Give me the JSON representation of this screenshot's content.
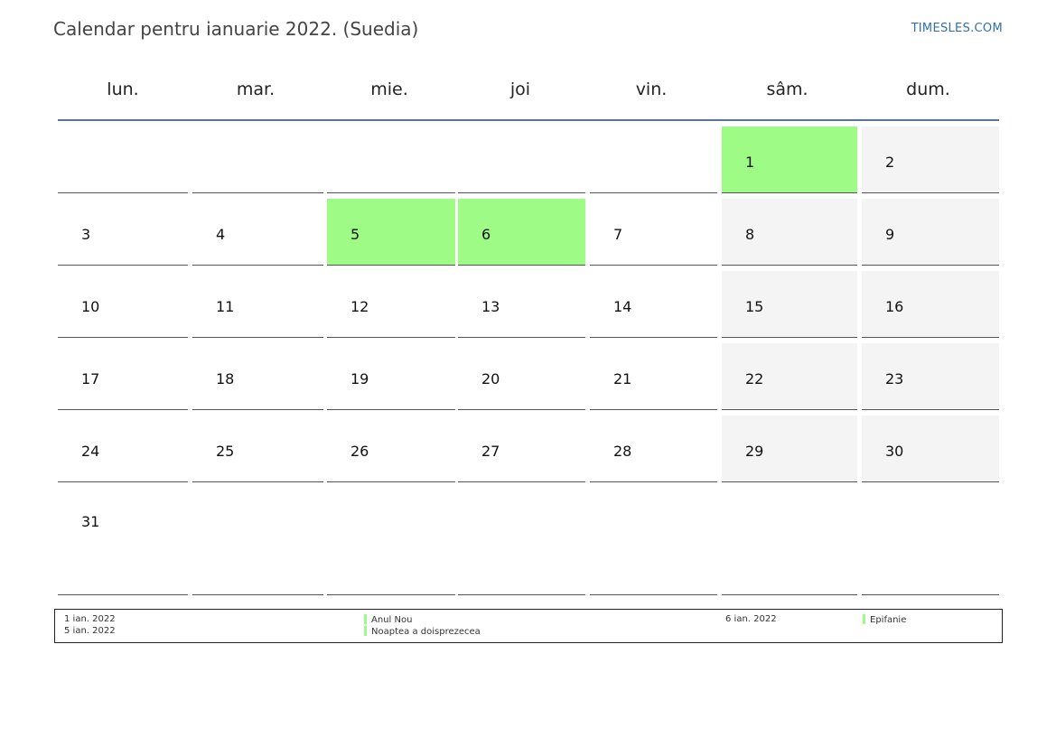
{
  "header": {
    "title": "Calendar pentru ianuarie 2022. (Suedia)",
    "site": "TIMESLES.COM"
  },
  "weekdays": [
    "lun.",
    "mar.",
    "mie.",
    "joi",
    "vin.",
    "sâm.",
    "dum."
  ],
  "weeks": [
    [
      "",
      "",
      "",
      "",
      "",
      "1",
      "2"
    ],
    [
      "3",
      "4",
      "5",
      "6",
      "7",
      "8",
      "9"
    ],
    [
      "10",
      "11",
      "12",
      "13",
      "14",
      "15",
      "16"
    ],
    [
      "17",
      "18",
      "19",
      "20",
      "21",
      "22",
      "23"
    ],
    [
      "24",
      "25",
      "26",
      "27",
      "28",
      "29",
      "30"
    ],
    [
      "31",
      "",
      "",
      "",
      "",
      "",
      ""
    ]
  ],
  "holiday_days": [
    "1",
    "5",
    "6"
  ],
  "colors": {
    "holiday": "#9efc86",
    "weekend": "#f4f4f4",
    "accent_line": "#5a7494",
    "link": "#2f6fb0"
  },
  "legend": [
    {
      "date": "1 ian. 2022",
      "name": "Anul Nou"
    },
    {
      "date": "5 ian. 2022",
      "name": "Noaptea a doisprezecea"
    },
    {
      "date": "6 ian. 2022",
      "name": "Epifanie"
    }
  ]
}
